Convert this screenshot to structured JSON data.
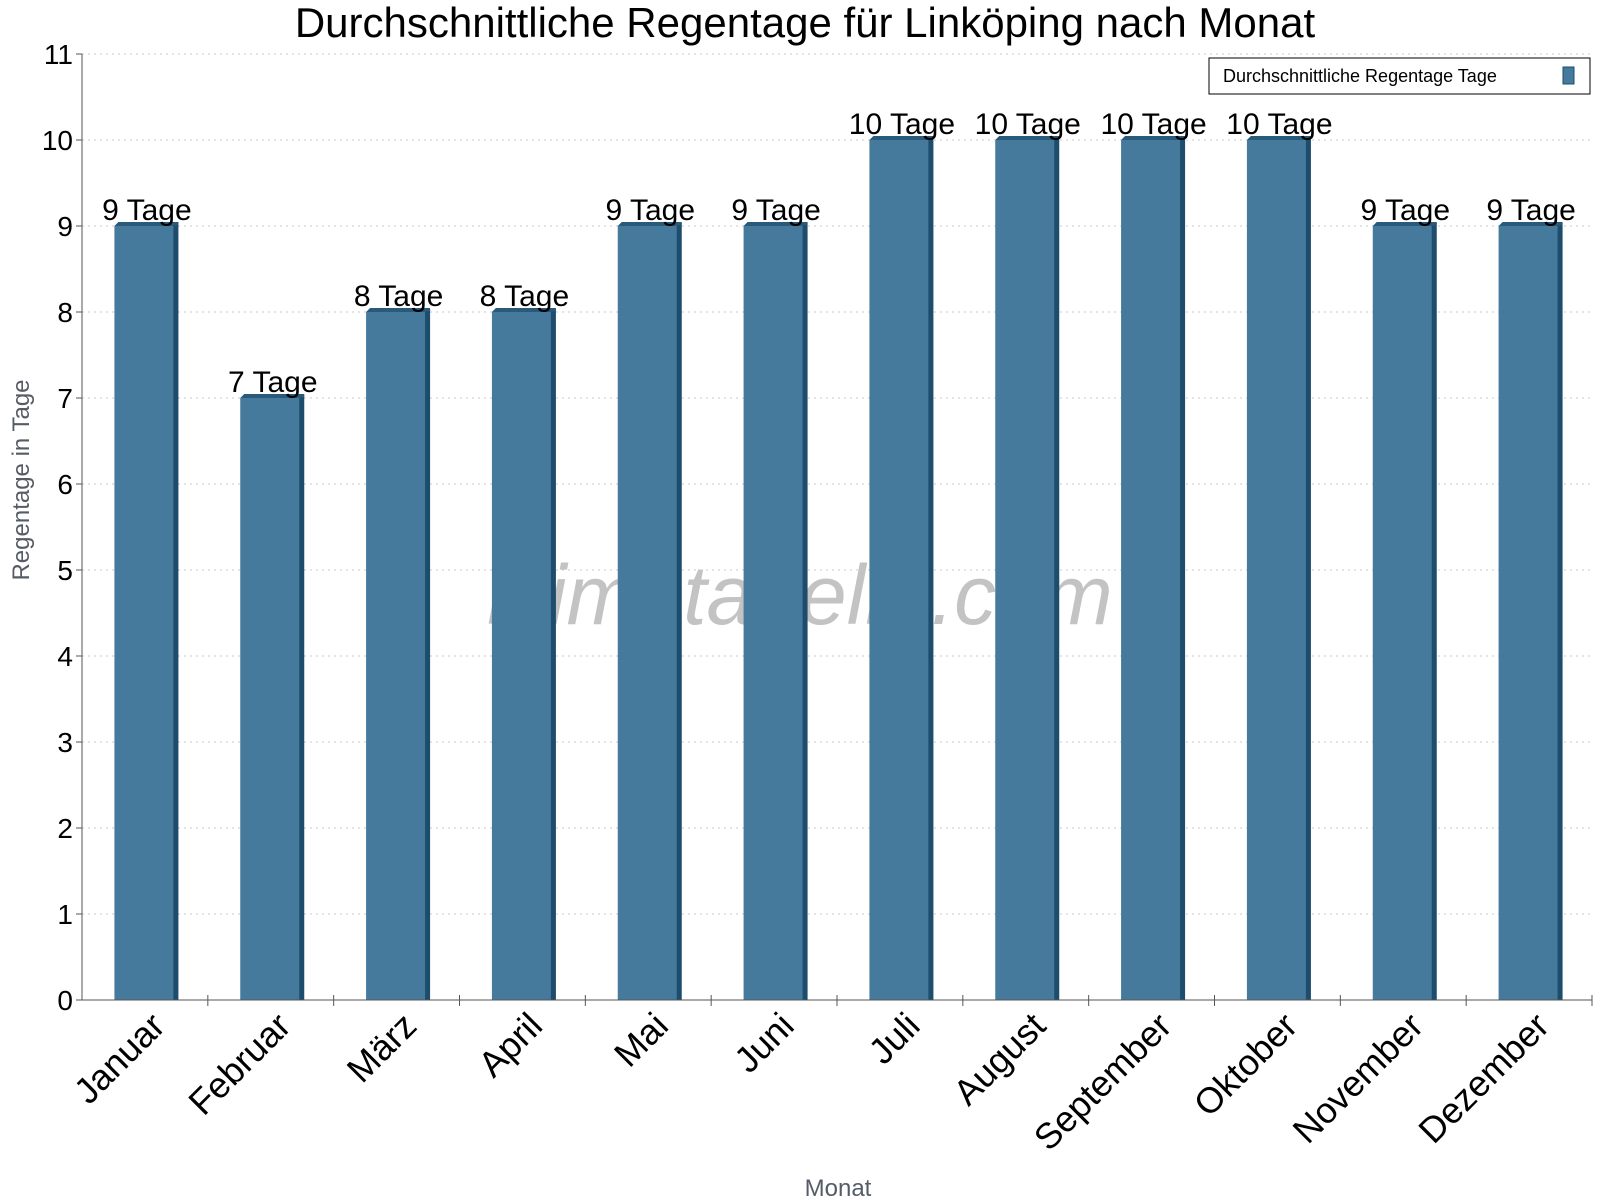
{
  "watermark": "klimatabelle.com",
  "colors": {
    "bar_face": "#457a9d",
    "bar_side": "#1d4c6c",
    "bar_top": "#2a5a7a",
    "grid": "#c8c8c8",
    "axis": "#555555"
  },
  "chart_data": {
    "type": "bar",
    "title": "Durchschnittliche Regentage für Linköping nach Monat",
    "xlabel": "Monat",
    "ylabel": "Regentage in Tage",
    "categories": [
      "Januar",
      "Februar",
      "März",
      "April",
      "Mai",
      "Juni",
      "Juli",
      "August",
      "September",
      "Oktober",
      "November",
      "Dezember"
    ],
    "series": [
      {
        "name": "Durchschnittliche Regentage Tage",
        "values": [
          9,
          7,
          8,
          8,
          9,
          9,
          10,
          10,
          10,
          10,
          9,
          9
        ],
        "labels": [
          "9 Tage",
          "7 Tage",
          "8 Tage",
          "8 Tage",
          "9 Tage",
          "9 Tage",
          "10 Tage",
          "10 Tage",
          "10 Tage",
          "10 Tage",
          "9 Tage",
          "9 Tage"
        ]
      }
    ],
    "ylim": [
      0,
      11
    ],
    "yticks": [
      0,
      1,
      2,
      3,
      4,
      5,
      6,
      7,
      8,
      9,
      10,
      11
    ],
    "grid": true,
    "legend_position": "top-right"
  }
}
